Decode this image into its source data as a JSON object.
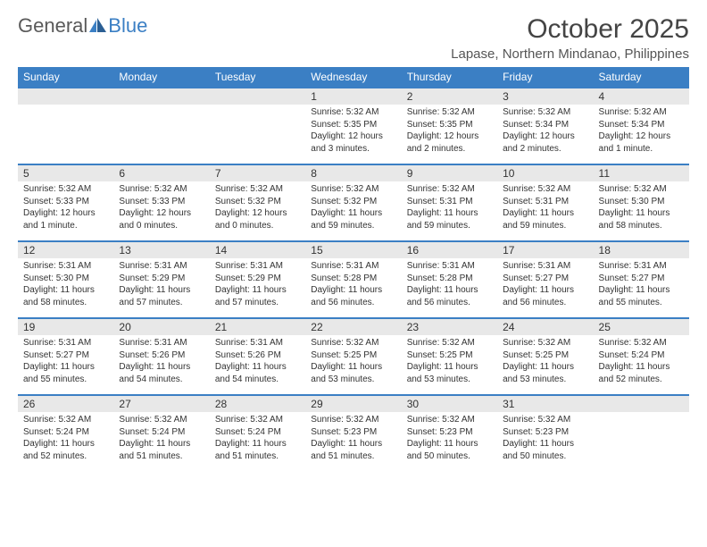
{
  "brand": {
    "general": "General",
    "blue": "Blue"
  },
  "title": "October 2025",
  "location": "Lapase, Northern Mindanao, Philippines",
  "colors": {
    "accent": "#3b7fc4",
    "header_bg": "#3b7fc4",
    "daynum_bg": "#e8e8e8",
    "text": "#333333",
    "bg": "#ffffff"
  },
  "day_labels": [
    "Sunday",
    "Monday",
    "Tuesday",
    "Wednesday",
    "Thursday",
    "Friday",
    "Saturday"
  ],
  "weeks": [
    [
      {
        "blank": true
      },
      {
        "blank": true
      },
      {
        "blank": true
      },
      {
        "n": "1",
        "sr": "Sunrise: 5:32 AM",
        "ss": "Sunset: 5:35 PM",
        "dl": "Daylight: 12 hours and 3 minutes."
      },
      {
        "n": "2",
        "sr": "Sunrise: 5:32 AM",
        "ss": "Sunset: 5:35 PM",
        "dl": "Daylight: 12 hours and 2 minutes."
      },
      {
        "n": "3",
        "sr": "Sunrise: 5:32 AM",
        "ss": "Sunset: 5:34 PM",
        "dl": "Daylight: 12 hours and 2 minutes."
      },
      {
        "n": "4",
        "sr": "Sunrise: 5:32 AM",
        "ss": "Sunset: 5:34 PM",
        "dl": "Daylight: 12 hours and 1 minute."
      }
    ],
    [
      {
        "n": "5",
        "sr": "Sunrise: 5:32 AM",
        "ss": "Sunset: 5:33 PM",
        "dl": "Daylight: 12 hours and 1 minute."
      },
      {
        "n": "6",
        "sr": "Sunrise: 5:32 AM",
        "ss": "Sunset: 5:33 PM",
        "dl": "Daylight: 12 hours and 0 minutes."
      },
      {
        "n": "7",
        "sr": "Sunrise: 5:32 AM",
        "ss": "Sunset: 5:32 PM",
        "dl": "Daylight: 12 hours and 0 minutes."
      },
      {
        "n": "8",
        "sr": "Sunrise: 5:32 AM",
        "ss": "Sunset: 5:32 PM",
        "dl": "Daylight: 11 hours and 59 minutes."
      },
      {
        "n": "9",
        "sr": "Sunrise: 5:32 AM",
        "ss": "Sunset: 5:31 PM",
        "dl": "Daylight: 11 hours and 59 minutes."
      },
      {
        "n": "10",
        "sr": "Sunrise: 5:32 AM",
        "ss": "Sunset: 5:31 PM",
        "dl": "Daylight: 11 hours and 59 minutes."
      },
      {
        "n": "11",
        "sr": "Sunrise: 5:32 AM",
        "ss": "Sunset: 5:30 PM",
        "dl": "Daylight: 11 hours and 58 minutes."
      }
    ],
    [
      {
        "n": "12",
        "sr": "Sunrise: 5:31 AM",
        "ss": "Sunset: 5:30 PM",
        "dl": "Daylight: 11 hours and 58 minutes."
      },
      {
        "n": "13",
        "sr": "Sunrise: 5:31 AM",
        "ss": "Sunset: 5:29 PM",
        "dl": "Daylight: 11 hours and 57 minutes."
      },
      {
        "n": "14",
        "sr": "Sunrise: 5:31 AM",
        "ss": "Sunset: 5:29 PM",
        "dl": "Daylight: 11 hours and 57 minutes."
      },
      {
        "n": "15",
        "sr": "Sunrise: 5:31 AM",
        "ss": "Sunset: 5:28 PM",
        "dl": "Daylight: 11 hours and 56 minutes."
      },
      {
        "n": "16",
        "sr": "Sunrise: 5:31 AM",
        "ss": "Sunset: 5:28 PM",
        "dl": "Daylight: 11 hours and 56 minutes."
      },
      {
        "n": "17",
        "sr": "Sunrise: 5:31 AM",
        "ss": "Sunset: 5:27 PM",
        "dl": "Daylight: 11 hours and 56 minutes."
      },
      {
        "n": "18",
        "sr": "Sunrise: 5:31 AM",
        "ss": "Sunset: 5:27 PM",
        "dl": "Daylight: 11 hours and 55 minutes."
      }
    ],
    [
      {
        "n": "19",
        "sr": "Sunrise: 5:31 AM",
        "ss": "Sunset: 5:27 PM",
        "dl": "Daylight: 11 hours and 55 minutes."
      },
      {
        "n": "20",
        "sr": "Sunrise: 5:31 AM",
        "ss": "Sunset: 5:26 PM",
        "dl": "Daylight: 11 hours and 54 minutes."
      },
      {
        "n": "21",
        "sr": "Sunrise: 5:31 AM",
        "ss": "Sunset: 5:26 PM",
        "dl": "Daylight: 11 hours and 54 minutes."
      },
      {
        "n": "22",
        "sr": "Sunrise: 5:32 AM",
        "ss": "Sunset: 5:25 PM",
        "dl": "Daylight: 11 hours and 53 minutes."
      },
      {
        "n": "23",
        "sr": "Sunrise: 5:32 AM",
        "ss": "Sunset: 5:25 PM",
        "dl": "Daylight: 11 hours and 53 minutes."
      },
      {
        "n": "24",
        "sr": "Sunrise: 5:32 AM",
        "ss": "Sunset: 5:25 PM",
        "dl": "Daylight: 11 hours and 53 minutes."
      },
      {
        "n": "25",
        "sr": "Sunrise: 5:32 AM",
        "ss": "Sunset: 5:24 PM",
        "dl": "Daylight: 11 hours and 52 minutes."
      }
    ],
    [
      {
        "n": "26",
        "sr": "Sunrise: 5:32 AM",
        "ss": "Sunset: 5:24 PM",
        "dl": "Daylight: 11 hours and 52 minutes."
      },
      {
        "n": "27",
        "sr": "Sunrise: 5:32 AM",
        "ss": "Sunset: 5:24 PM",
        "dl": "Daylight: 11 hours and 51 minutes."
      },
      {
        "n": "28",
        "sr": "Sunrise: 5:32 AM",
        "ss": "Sunset: 5:24 PM",
        "dl": "Daylight: 11 hours and 51 minutes."
      },
      {
        "n": "29",
        "sr": "Sunrise: 5:32 AM",
        "ss": "Sunset: 5:23 PM",
        "dl": "Daylight: 11 hours and 51 minutes."
      },
      {
        "n": "30",
        "sr": "Sunrise: 5:32 AM",
        "ss": "Sunset: 5:23 PM",
        "dl": "Daylight: 11 hours and 50 minutes."
      },
      {
        "n": "31",
        "sr": "Sunrise: 5:32 AM",
        "ss": "Sunset: 5:23 PM",
        "dl": "Daylight: 11 hours and 50 minutes."
      },
      {
        "blank": true
      }
    ]
  ]
}
